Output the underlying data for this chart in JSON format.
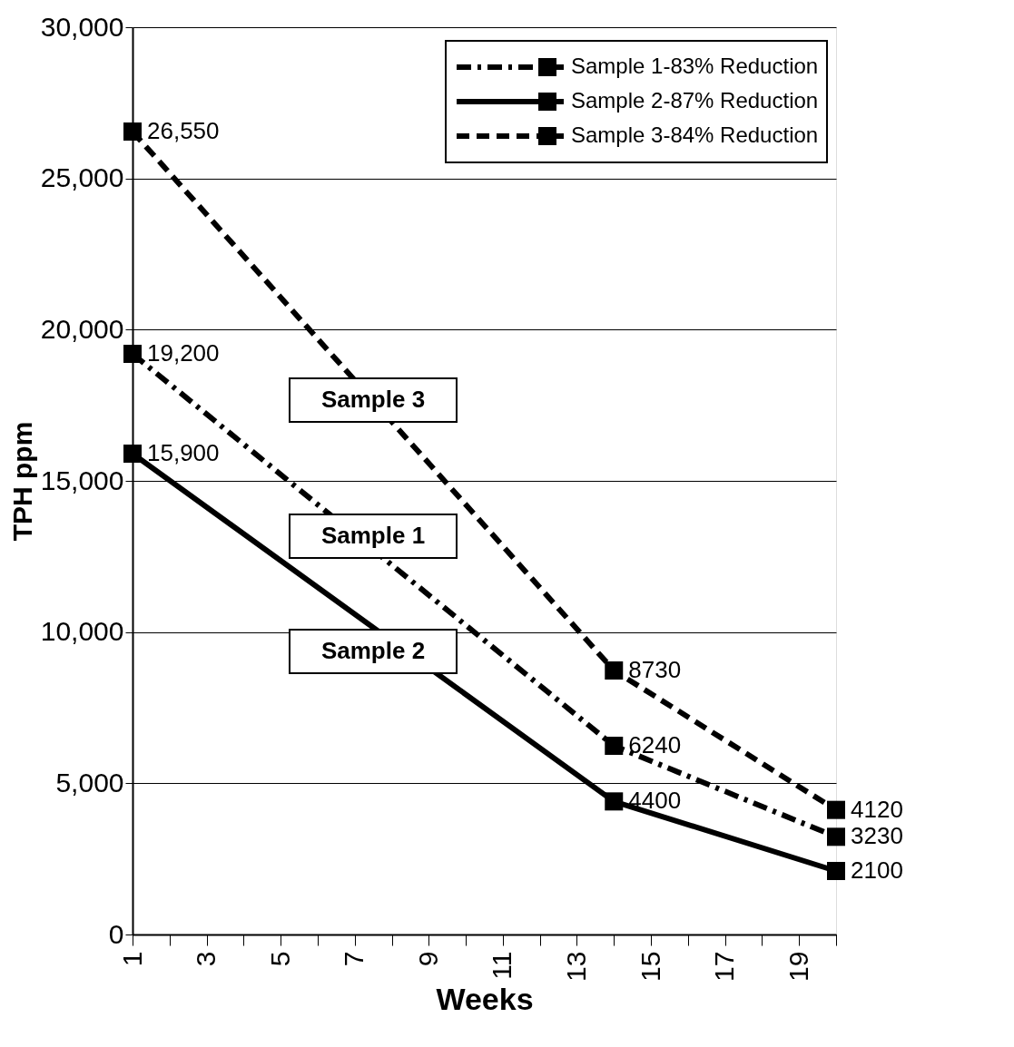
{
  "chart_data": {
    "type": "line",
    "xlabel": "Weeks",
    "ylabel": "TPH ppm",
    "xlim": [
      1,
      20
    ],
    "xticks": [
      1,
      {
        "value": 2,
        "label": null
      },
      3,
      {
        "value": 4,
        "label": null
      },
      5,
      {
        "value": 6,
        "label": null
      },
      7,
      {
        "value": 8,
        "label": null
      },
      9,
      {
        "value": 10,
        "label": null
      },
      11,
      {
        "value": 12,
        "label": null
      },
      13,
      {
        "value": 14,
        "label": null
      },
      15,
      {
        "value": 16,
        "label": null
      },
      17,
      {
        "value": 18,
        "label": null
      },
      19,
      {
        "value": 20,
        "label": null
      }
    ],
    "ylim": [
      0,
      30000
    ],
    "yticks": [
      {
        "value": 0,
        "label": "0"
      },
      {
        "value": 5000,
        "label": "5,000"
      },
      {
        "value": 10000,
        "label": "10,000"
      },
      {
        "value": 15000,
        "label": "15,000"
      },
      {
        "value": 20000,
        "label": "20,000"
      },
      {
        "value": 25000,
        "label": "25,000"
      },
      {
        "value": 30000,
        "label": "30,000"
      }
    ],
    "grid": "y",
    "legend": "top right",
    "marker": "square",
    "series": [
      {
        "name": "Sample 1-83% Reduction",
        "color": "#000000",
        "line_style": "dashdot",
        "x": [
          1,
          14,
          20
        ],
        "values": [
          19200,
          6240,
          3230
        ],
        "value_labels": [
          "19,200",
          "6240",
          "3230"
        ]
      },
      {
        "name": "Sample 2-87% Reduction",
        "color": "#000000",
        "line_style": "solid",
        "x": [
          1,
          14,
          20
        ],
        "values": [
          15900,
          4400,
          2100
        ],
        "value_labels": [
          "15,900",
          "4400",
          "2100"
        ]
      },
      {
        "name": "Sample 3-84% Reduction",
        "color": "#000000",
        "line_style": "dashed",
        "x": [
          1,
          14,
          20
        ],
        "values": [
          26550,
          8730,
          4120
        ],
        "value_labels": [
          "26,550",
          "8730",
          "4120"
        ]
      }
    ],
    "annotations": [
      "Sample 3",
      "Sample 1",
      "Sample 2"
    ]
  }
}
